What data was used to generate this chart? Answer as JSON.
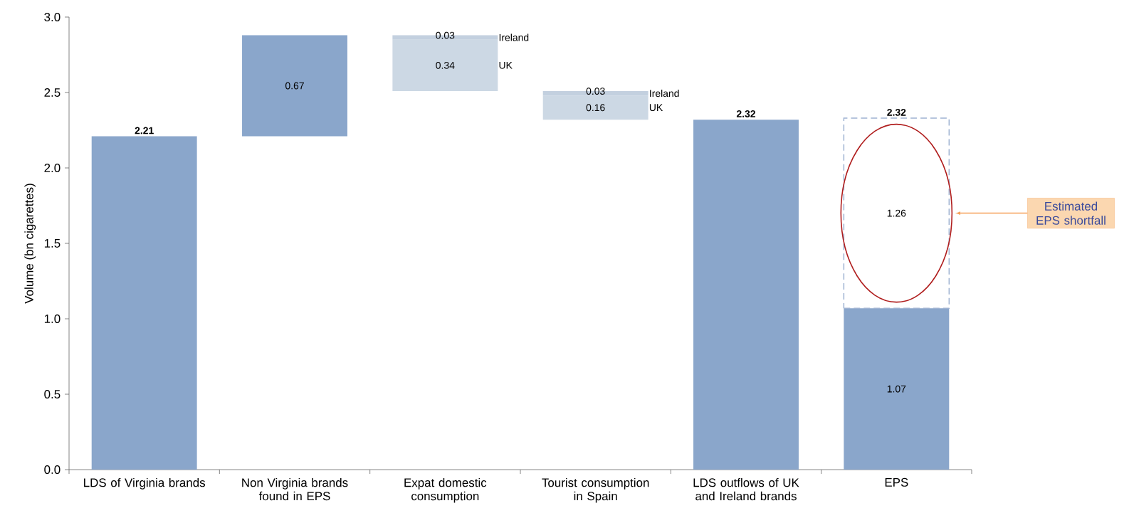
{
  "chart_data": {
    "type": "bar",
    "ylabel": "Volume (bn cigarettes)",
    "categories": [
      "LDS of Virginia brands",
      "Non Virginia brands found in EPS",
      "Expat domestic consumption",
      "Tourist consumption in Spain",
      "LDS outflows of UK and Ireland brands",
      "EPS"
    ],
    "series": [
      {
        "color": "#8aa6cb",
        "values": [
          2.21,
          0.67,
          null,
          null,
          2.32,
          1.07
        ],
        "base": [
          0,
          2.21,
          null,
          null,
          0,
          0
        ],
        "value_labels": [
          null,
          "0.67",
          null,
          null,
          null,
          "1.07"
        ]
      },
      {
        "name": "UK",
        "color": "#ccd8e4",
        "values": [
          null,
          null,
          0.34,
          0.16,
          null,
          null
        ],
        "base": [
          null,
          null,
          2.51,
          2.32,
          null,
          null
        ],
        "value_labels": [
          null,
          null,
          "0.34",
          "0.16",
          null,
          null
        ]
      },
      {
        "name": "Ireland",
        "color": "#c3d0df",
        "values": [
          null,
          null,
          0.03,
          0.03,
          null,
          null
        ],
        "base": [
          null,
          null,
          2.85,
          2.48,
          null,
          null
        ],
        "value_labels": [
          null,
          null,
          "0.03",
          "0.03",
          null,
          null
        ]
      },
      {
        "color": "#9fb3d2",
        "line_style": "dashed",
        "values": [
          null,
          null,
          null,
          null,
          null,
          1.26
        ],
        "base": [
          null,
          null,
          null,
          null,
          null,
          1.07
        ],
        "value_labels": [
          null,
          null,
          null,
          null,
          null,
          "1.26"
        ]
      }
    ],
    "totals": [
      "2.21",
      null,
      null,
      null,
      "2.32",
      "2.32"
    ],
    "ylim": [
      0,
      3
    ],
    "yticks": [
      {
        "value": 0,
        "label": "0.0"
      },
      {
        "value": 0.5,
        "label": "0.5"
      },
      {
        "value": 1,
        "label": "1.0"
      },
      {
        "value": 1.5,
        "label": "1.5"
      },
      {
        "value": 2,
        "label": "2.0"
      },
      {
        "value": 2.5,
        "label": "2.5"
      },
      {
        "value": 3,
        "label": "3.0"
      }
    ],
    "annotations": [
      "Estimated EPS shortfall"
    ]
  }
}
